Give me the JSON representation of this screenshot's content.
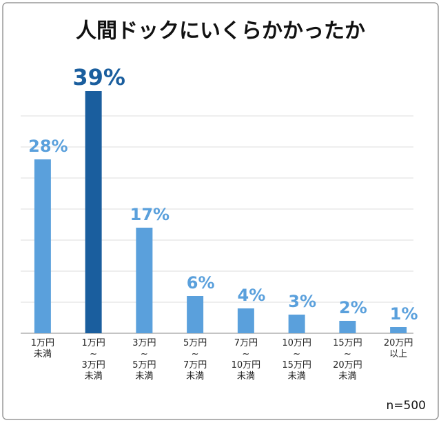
{
  "chart_data": {
    "type": "bar",
    "title": "人間ドックにいくらかかったか",
    "categories": [
      [
        "1万円",
        "未満"
      ],
      [
        "1万円",
        "~",
        "3万円",
        "未満"
      ],
      [
        "3万円",
        "~",
        "5万円",
        "未満"
      ],
      [
        "5万円",
        "~",
        "7万円",
        "未満"
      ],
      [
        "7万円",
        "~",
        "10万円",
        "未満"
      ],
      [
        "10万円",
        "~",
        "15万円",
        "未満"
      ],
      [
        "15万円",
        "~",
        "20万円",
        "未満"
      ],
      [
        "20万円",
        "以上"
      ]
    ],
    "values": [
      28,
      39,
      17,
      6,
      4,
      3,
      2,
      1
    ],
    "value_labels": [
      "28%",
      "39%",
      "17%",
      "6%",
      "4%",
      "3%",
      "2%",
      "1%"
    ],
    "colors": [
      "#5aa0dc",
      "#1a5e9e",
      "#5aa0dc",
      "#5aa0dc",
      "#5aa0dc",
      "#5aa0dc",
      "#5aa0dc",
      "#5aa0dc"
    ],
    "ylim": [
      0,
      40
    ],
    "yticks": [
      0,
      5,
      10,
      15,
      20,
      25,
      30,
      35
    ],
    "grid": true,
    "note": "n=500"
  }
}
